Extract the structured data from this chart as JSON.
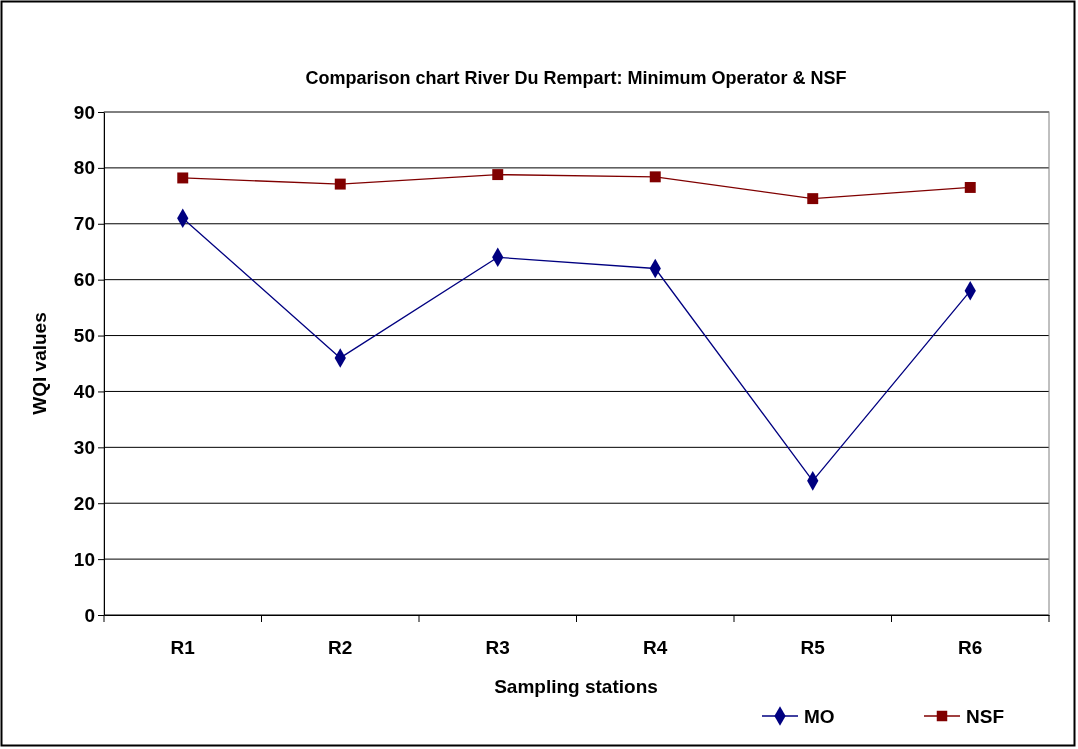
{
  "chart_data": {
    "type": "line",
    "title": "Comparison chart River Du Rempart: Minimum Operator & NSF",
    "xlabel": "Sampling stations",
    "ylabel": "WQI values",
    "categories": [
      "R1",
      "R2",
      "R3",
      "R4",
      "R5",
      "R6"
    ],
    "series": [
      {
        "name": "MO",
        "color": "#000080",
        "marker": "diamond",
        "values": [
          71,
          46,
          64,
          62,
          24,
          58
        ]
      },
      {
        "name": "NSF",
        "color": "#800000",
        "marker": "square",
        "values": [
          78.2,
          77.1,
          78.8,
          78.4,
          74.5,
          76.5
        ]
      }
    ],
    "ylim": [
      0,
      90
    ],
    "yticks": [
      0,
      10,
      20,
      30,
      40,
      50,
      60,
      70,
      80,
      90
    ],
    "grid": "y",
    "legend": "bottom right",
    "line_style": "solid"
  }
}
